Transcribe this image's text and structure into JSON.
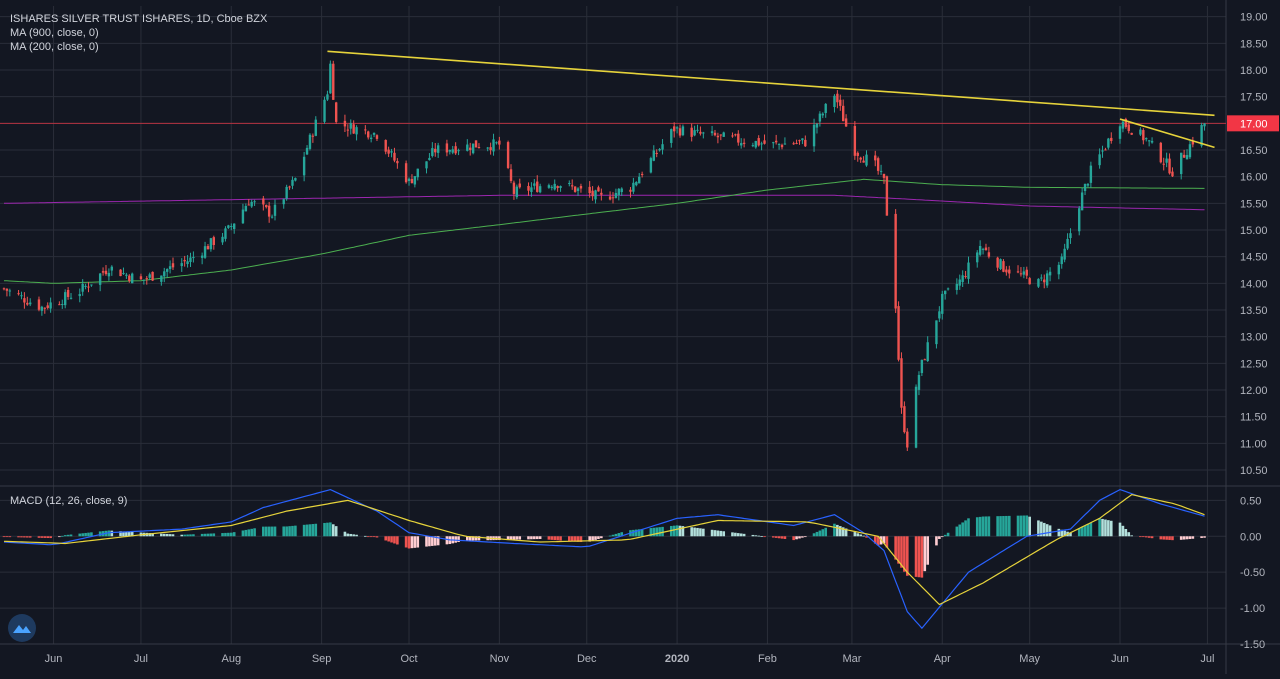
{
  "header": {
    "title": "ISHARES SILVER TRUST ISHARES, 1D, Cboe BZX",
    "ma_long_label": "MA (900, close, 0)",
    "ma_short_label": "MA (200, close, 0)",
    "macd_label": "MACD (12, 26, close, 9)"
  },
  "colors": {
    "background": "#131722",
    "grid": "#2a2e39",
    "up": "#26a69a",
    "down": "#ef5350",
    "trendline": "#e6d33b",
    "ma_long": "#9c27b0",
    "ma_short": "#4caf50",
    "macd_line": "#2962ff",
    "signal_line": "#e6d33b",
    "price_line": "#f23645"
  },
  "chart_data": [
    {
      "type": "candlestick",
      "title": "ISHARES SILVER TRUST ISHARES, 1D, Cboe BZX",
      "x_ticks": [
        "Jun",
        "Jul",
        "Aug",
        "Sep",
        "Oct",
        "Nov",
        "Dec",
        "2020",
        "Feb",
        "Mar",
        "Apr",
        "May",
        "Jun",
        "Jul"
      ],
      "y_ticks": [
        "19.00",
        "18.50",
        "18.00",
        "17.50",
        "17.00",
        "16.50",
        "16.00",
        "15.50",
        "15.00",
        "14.50",
        "14.00",
        "13.50",
        "13.00",
        "12.50",
        "12.00",
        "11.50",
        "11.00",
        "10.50"
      ],
      "ylim": [
        10.2,
        19.2
      ],
      "last_price_label": "17.00",
      "last_price": 17.0,
      "close_anchors": [
        [
          "2019-05-15",
          13.9
        ],
        [
          "2019-05-28",
          13.55
        ],
        [
          "2019-06-10",
          13.85
        ],
        [
          "2019-06-20",
          14.3
        ],
        [
          "2019-07-01",
          14.05
        ],
        [
          "2019-07-18",
          14.45
        ],
        [
          "2019-07-31",
          15.0
        ],
        [
          "2019-08-07",
          15.55
        ],
        [
          "2019-08-15",
          15.3
        ],
        [
          "2019-08-23",
          15.95
        ],
        [
          "2019-09-03",
          17.6
        ],
        [
          "2019-09-04",
          18.1
        ],
        [
          "2019-09-06",
          17.0
        ],
        [
          "2019-09-20",
          16.8
        ],
        [
          "2019-10-01",
          15.9
        ],
        [
          "2019-10-10",
          16.5
        ],
        [
          "2019-10-25",
          16.6
        ],
        [
          "2019-11-01",
          16.6
        ],
        [
          "2019-11-06",
          15.7
        ],
        [
          "2019-11-20",
          15.9
        ],
        [
          "2019-12-06",
          15.6
        ],
        [
          "2019-12-16",
          15.8
        ],
        [
          "2019-12-31",
          16.9
        ],
        [
          "2020-01-08",
          16.8
        ],
        [
          "2020-01-20",
          16.7
        ],
        [
          "2020-02-03",
          16.6
        ],
        [
          "2020-02-14",
          16.65
        ],
        [
          "2020-02-24",
          17.55
        ],
        [
          "2020-03-02",
          16.5
        ],
        [
          "2020-03-09",
          16.2
        ],
        [
          "2020-03-12",
          15.9
        ],
        [
          "2020-03-16",
          13.6
        ],
        [
          "2020-03-18",
          11.6
        ],
        [
          "2020-03-20",
          11.0
        ],
        [
          "2020-03-24",
          12.3
        ],
        [
          "2020-04-01",
          13.7
        ],
        [
          "2020-04-08",
          14.1
        ],
        [
          "2020-04-14",
          14.7
        ],
        [
          "2020-04-22",
          14.3
        ],
        [
          "2020-05-04",
          14.0
        ],
        [
          "2020-05-12",
          14.4
        ],
        [
          "2020-05-18",
          15.5
        ],
        [
          "2020-05-22",
          16.1
        ],
        [
          "2020-06-01",
          17.05
        ],
        [
          "2020-06-10",
          16.7
        ],
        [
          "2020-06-19",
          16.1
        ],
        [
          "2020-06-30",
          17.0
        ]
      ],
      "ma_900_anchors": [
        [
          "2019-05-15",
          15.5
        ],
        [
          "2019-11-01",
          15.65
        ],
        [
          "2020-02-24",
          15.65
        ],
        [
          "2020-03-20",
          15.58
        ],
        [
          "2020-05-01",
          15.45
        ],
        [
          "2020-06-30",
          15.38
        ]
      ],
      "ma_200_anchors": [
        [
          "2019-05-15",
          14.05
        ],
        [
          "2019-06-01",
          14.0
        ],
        [
          "2019-07-01",
          14.05
        ],
        [
          "2019-08-01",
          14.25
        ],
        [
          "2019-09-01",
          14.55
        ],
        [
          "2019-10-01",
          14.9
        ],
        [
          "2019-11-01",
          15.1
        ],
        [
          "2019-12-01",
          15.3
        ],
        [
          "2020-01-01",
          15.5
        ],
        [
          "2020-02-01",
          15.75
        ],
        [
          "2020-03-05",
          15.95
        ],
        [
          "2020-04-01",
          15.85
        ],
        [
          "2020-05-01",
          15.8
        ],
        [
          "2020-06-30",
          15.78
        ]
      ],
      "trendlines": [
        {
          "from": [
            "2019-09-03",
            18.35
          ],
          "to": [
            "2020-06-30",
            17.17
          ]
        },
        {
          "from": [
            "2020-06-01",
            17.08
          ],
          "to": [
            "2020-06-30",
            16.6
          ]
        }
      ]
    },
    {
      "type": "macd",
      "title": "MACD (12, 26, close, 9)",
      "y_ticks": [
        "0.50",
        "0.00",
        "-0.50",
        "-1.00",
        "-1.50"
      ],
      "ylim": [
        -1.5,
        0.7
      ],
      "macd_anchors": [
        [
          "2019-05-15",
          -0.08
        ],
        [
          "2019-06-01",
          -0.12
        ],
        [
          "2019-06-20",
          0.05
        ],
        [
          "2019-07-15",
          0.1
        ],
        [
          "2019-08-01",
          0.2
        ],
        [
          "2019-08-12",
          0.4
        ],
        [
          "2019-09-04",
          0.65
        ],
        [
          "2019-09-20",
          0.35
        ],
        [
          "2019-10-01",
          0.05
        ],
        [
          "2019-10-15",
          -0.05
        ],
        [
          "2019-11-06",
          -0.1
        ],
        [
          "2019-12-01",
          -0.15
        ],
        [
          "2020-01-01",
          0.25
        ],
        [
          "2020-01-15",
          0.3
        ],
        [
          "2020-02-10",
          0.15
        ],
        [
          "2020-02-24",
          0.3
        ],
        [
          "2020-03-05",
          0.05
        ],
        [
          "2020-03-12",
          -0.2
        ],
        [
          "2020-03-20",
          -1.05
        ],
        [
          "2020-03-25",
          -1.28
        ],
        [
          "2020-04-10",
          -0.5
        ],
        [
          "2020-04-30",
          0.0
        ],
        [
          "2020-05-15",
          0.1
        ],
        [
          "2020-05-25",
          0.5
        ],
        [
          "2020-06-01",
          0.65
        ],
        [
          "2020-06-15",
          0.45
        ],
        [
          "2020-06-30",
          0.28
        ]
      ],
      "signal_anchors": [
        [
          "2019-05-15",
          -0.07
        ],
        [
          "2019-06-05",
          -0.1
        ],
        [
          "2019-07-01",
          0.02
        ],
        [
          "2019-08-01",
          0.15
        ],
        [
          "2019-08-20",
          0.35
        ],
        [
          "2019-09-10",
          0.5
        ],
        [
          "2019-10-01",
          0.22
        ],
        [
          "2019-10-20",
          0.0
        ],
        [
          "2019-11-15",
          -0.08
        ],
        [
          "2019-12-15",
          -0.05
        ],
        [
          "2020-01-15",
          0.22
        ],
        [
          "2020-02-15",
          0.2
        ],
        [
          "2020-03-10",
          0.0
        ],
        [
          "2020-03-20",
          -0.5
        ],
        [
          "2020-03-31",
          -0.95
        ],
        [
          "2020-04-15",
          -0.65
        ],
        [
          "2020-05-10",
          -0.05
        ],
        [
          "2020-05-25",
          0.25
        ],
        [
          "2020-06-05",
          0.58
        ],
        [
          "2020-06-20",
          0.45
        ],
        [
          "2020-06-30",
          0.3
        ]
      ]
    }
  ]
}
